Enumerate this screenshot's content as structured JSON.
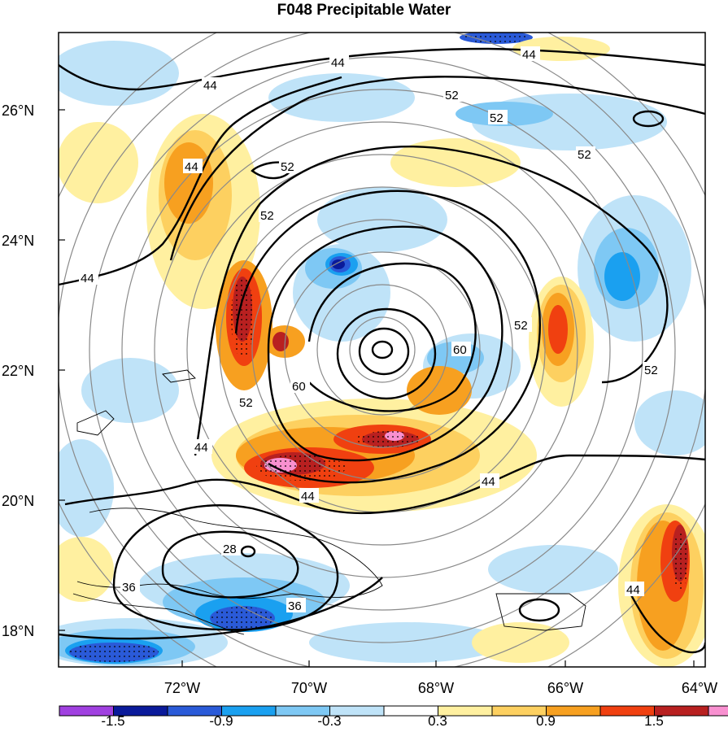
{
  "title": "F048 Precipitable Water",
  "map": {
    "lat_ticks": [
      "26°N",
      "24°N",
      "22°N",
      "20°N",
      "18°N"
    ],
    "lon_ticks": [
      "72°W",
      "70°W",
      "68°W",
      "66°W",
      "64°W"
    ],
    "storm_center": {
      "lon": "69.0°W",
      "lat": "22.3°N"
    },
    "contour_labels": [
      "44",
      "44",
      "44",
      "44",
      "52",
      "52",
      "52",
      "52",
      "52",
      "52",
      "52",
      "60",
      "60",
      "52",
      "44",
      "44",
      "44",
      "44",
      "28",
      "36",
      "36",
      "44"
    ]
  },
  "colorbar": {
    "labels": [
      "-1.5",
      "-0.9",
      "-0.3",
      "0.3",
      "0.9",
      "1.5"
    ],
    "colors": [
      "#a040e0",
      "#0a1a9a",
      "#2a5ad8",
      "#1aa0f0",
      "#7ec8f4",
      "#bfe3f8",
      "#ffffff",
      "#fff0a0",
      "#fdd060",
      "#f7a020",
      "#f04010",
      "#b82020",
      "#f890d0"
    ]
  },
  "palette": {
    "light_blue": "#bfe3f8",
    "mid_blue": "#7ec8f4",
    "blue": "#1aa0f0",
    "dark_blue": "#2a5ad8",
    "light_yellow": "#fff0a0",
    "yellow": "#fdd060",
    "orange": "#f7a020",
    "red_orange": "#f04010",
    "dark_red": "#b82020",
    "pink": "#f890d0"
  }
}
